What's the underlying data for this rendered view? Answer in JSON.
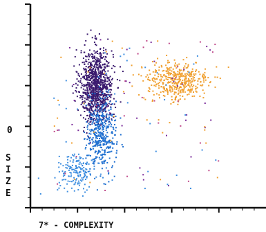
{
  "chart_data": {
    "type": "scatter",
    "title": "",
    "xlabel": "7* - COMPLEXITY",
    "ylabel": "SIZE",
    "ytick_labels": [
      {
        "value": 40,
        "label": "0"
      }
    ],
    "xlim": [
      0,
      100
    ],
    "ylim": [
      0,
      100
    ],
    "grid": false,
    "clusters": [
      {
        "color": "#3a1a6e",
        "center": [
          28,
          60
        ],
        "spread": [
          3.5,
          9
        ],
        "count": 950,
        "label": "dark purple population"
      },
      {
        "color": "#1e6fd0",
        "center": [
          30,
          36
        ],
        "spread": [
          3.2,
          9
        ],
        "count": 420,
        "label": "blue population"
      },
      {
        "color": "#3f8fe0",
        "center": [
          20,
          18
        ],
        "spread": [
          4,
          4
        ],
        "count": 160,
        "label": "lower blue tail"
      },
      {
        "color": "#f0a030",
        "center": [
          62,
          62
        ],
        "spread": [
          7,
          5
        ],
        "count": 420,
        "label": "orange population"
      }
    ],
    "scattered_colors": [
      "#7a2c9a",
      "#c04a8a",
      "#f0a030",
      "#3f8fe0"
    ]
  }
}
